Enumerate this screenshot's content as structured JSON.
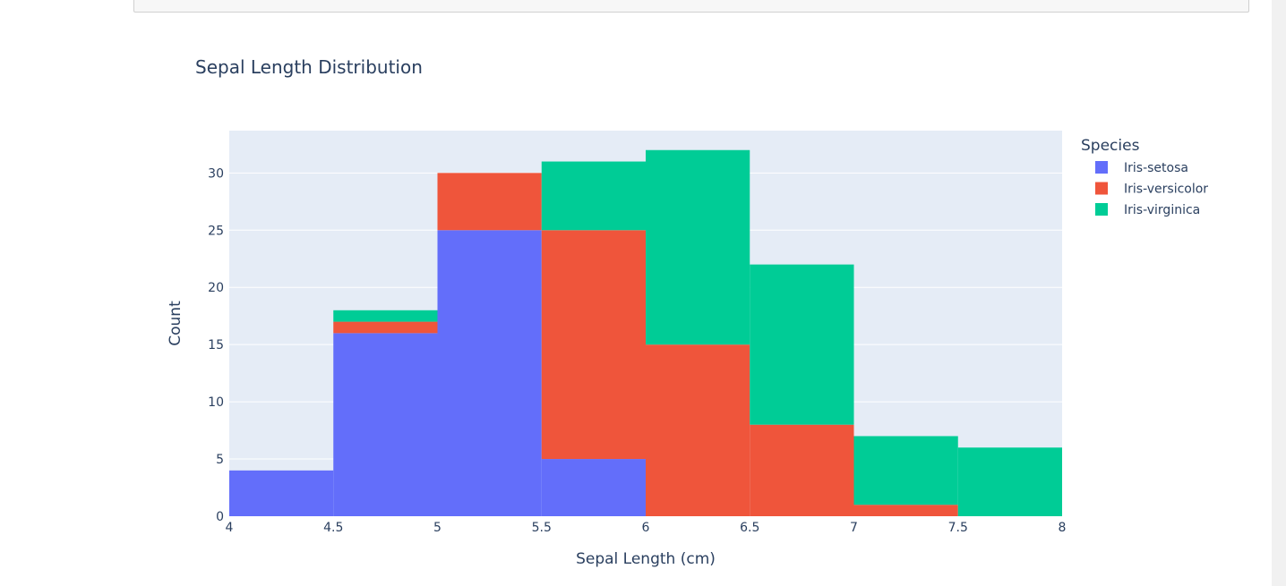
{
  "chart_data": {
    "type": "bar",
    "stacked": true,
    "title": "Sepal Length Distribution",
    "xlabel": "Sepal Length (cm)",
    "ylabel": "Count",
    "bins": [
      [
        4,
        4.5
      ],
      [
        4.5,
        5
      ],
      [
        5,
        5.5
      ],
      [
        5.5,
        6
      ],
      [
        6,
        6.5
      ],
      [
        6.5,
        7
      ],
      [
        7,
        7.5
      ],
      [
        7.5,
        8
      ]
    ],
    "xlim": [
      4,
      8
    ],
    "ylim": [
      0,
      33.7
    ],
    "x_ticks": [
      "4",
      "4.5",
      "5",
      "5.5",
      "6",
      "6.5",
      "7",
      "7.5",
      "8"
    ],
    "x_tick_values": [
      4,
      4.5,
      5,
      5.5,
      6,
      6.5,
      7,
      7.5,
      8
    ],
    "y_ticks": [
      0,
      5,
      10,
      15,
      20,
      25,
      30
    ],
    "grid": true,
    "legend": {
      "title": "Species",
      "placement": "right"
    },
    "series": [
      {
        "name": "Iris-setosa",
        "color": "#636efa",
        "values": [
          4,
          16,
          25,
          5,
          0,
          0,
          0,
          0
        ]
      },
      {
        "name": "Iris-versicolor",
        "color": "#ef553b",
        "values": [
          0,
          1,
          5,
          20,
          15,
          8,
          1,
          0
        ]
      },
      {
        "name": "Iris-virginica",
        "color": "#00cc96",
        "values": [
          0,
          1,
          0,
          6,
          17,
          14,
          6,
          6
        ]
      }
    ],
    "plot_background": "#e5ecf6"
  }
}
